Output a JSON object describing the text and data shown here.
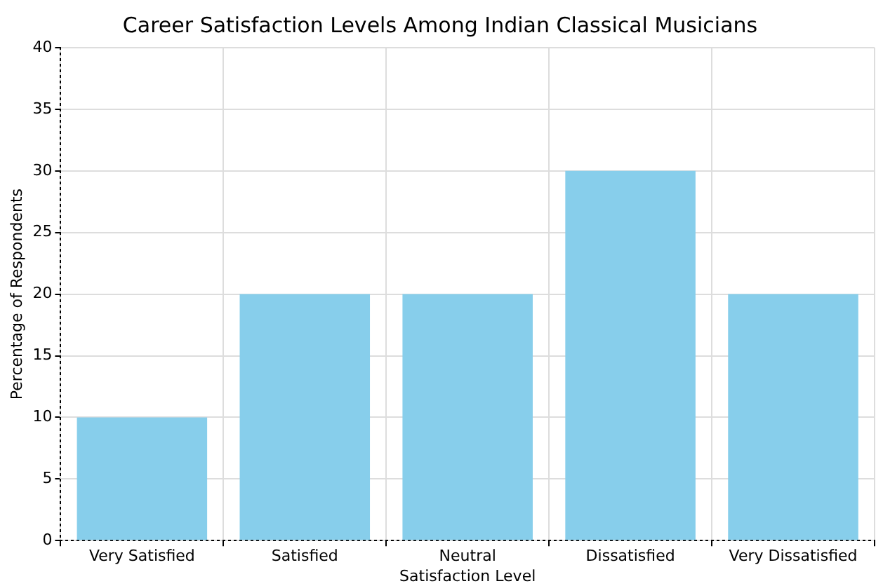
{
  "chart_data": {
    "type": "bar",
    "title": "Career Satisfaction Levels Among Indian Classical Musicians",
    "xlabel": "Satisfaction Level",
    "ylabel": "Percentage of Respondents",
    "categories": [
      "Very Satisfied",
      "Satisfied",
      "Neutral",
      "Dissatisfied",
      "Very Dissatisfied"
    ],
    "values": [
      10,
      20,
      20,
      30,
      20
    ],
    "color": "#87ceeb",
    "ylim": [
      0,
      40
    ],
    "yticks": [
      0,
      5,
      10,
      15,
      20,
      25,
      30,
      35,
      40
    ],
    "grid": true
  }
}
